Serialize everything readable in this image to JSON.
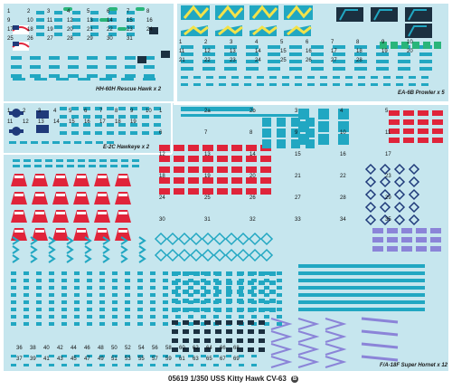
{
  "sets": [
    {
      "label": "HH-60H Rescue Hawk x 2"
    },
    {
      "label": "EA-6B Prowler x 5"
    },
    {
      "label": "E-2C Hawkeye x 2"
    },
    {
      "label": "F/A-18F Super Hornet x 12"
    }
  ],
  "footer": {
    "code": "05619",
    "scale": "1/350",
    "title": "USS Kitty Hawk CV-63",
    "badge": "B"
  },
  "colors": {
    "panel": "#c6e6ee",
    "teal": "#21a7c2",
    "green": "#29b57a",
    "red": "#e0243a",
    "navy": "#1f3a7a",
    "yellow": "#f3e24a",
    "violet": "#8b84d8",
    "dark": "#1b3040"
  },
  "numbers": {
    "hh60": [
      "1",
      "2",
      "3",
      "4",
      "5",
      "6",
      "7",
      "8",
      "9",
      "10",
      "11",
      "12",
      "13",
      "14",
      "15",
      "16",
      "17",
      "18",
      "19",
      "20",
      "21",
      "22",
      "23",
      "24",
      "25",
      "26",
      "27",
      "28",
      "29",
      "30",
      "31"
    ],
    "ea6b": [
      "1",
      "2",
      "3",
      "4",
      "5",
      "6",
      "7",
      "8",
      "9",
      "10",
      "11",
      "12",
      "13",
      "14",
      "15",
      "16",
      "17",
      "18",
      "19",
      "20",
      "21",
      "22",
      "23",
      "24",
      "25",
      "26",
      "27",
      "28"
    ],
    "e2c": [
      "1",
      "2",
      "3",
      "4",
      "5",
      "6",
      "7",
      "8",
      "9",
      "10",
      "11",
      "12",
      "13",
      "14",
      "15",
      "16",
      "17",
      "18",
      "19"
    ],
    "hornet": [
      "1",
      "2a",
      "2b",
      "3",
      "4",
      "5",
      "6",
      "7",
      "8",
      "9",
      "10",
      "11",
      "12",
      "13",
      "14",
      "15",
      "16",
      "17",
      "18",
      "19",
      "20",
      "21",
      "22",
      "23",
      "24",
      "25",
      "26",
      "27",
      "28",
      "29",
      "30",
      "31",
      "32",
      "33",
      "34",
      "35"
    ],
    "bottom_row1": [
      "36",
      "38",
      "40",
      "42",
      "44",
      "46",
      "48",
      "50",
      "52",
      "54",
      "56",
      "58",
      "60",
      "62",
      "64",
      "66",
      "68"
    ],
    "bottom_row2": [
      "37",
      "39",
      "41",
      "43",
      "45",
      "47",
      "49",
      "51",
      "53",
      "55",
      "57",
      "59",
      "61",
      "63",
      "65",
      "67",
      "69"
    ]
  }
}
